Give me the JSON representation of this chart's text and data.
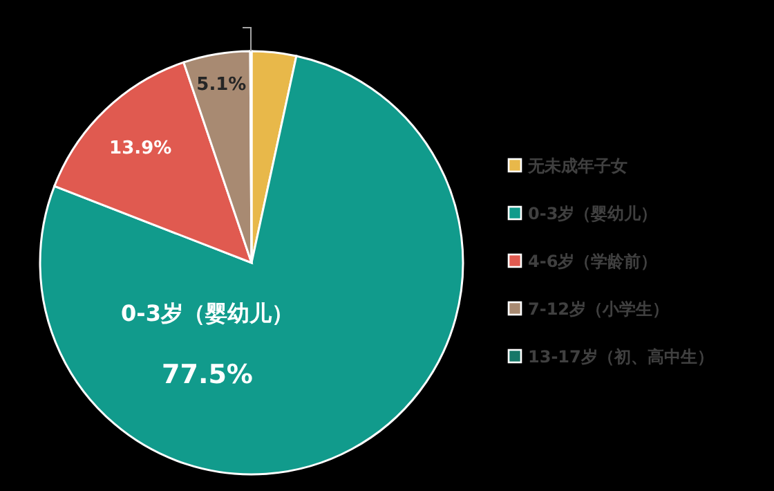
{
  "chart_data": {
    "type": "pie",
    "categories": [
      "无未成年子女",
      "0-3岁（婴幼儿）",
      "4-6岁（学龄前）",
      "7-12岁（小学生）",
      "13-17岁（初、高中生）"
    ],
    "values": [
      3.4,
      77.5,
      13.9,
      5.1,
      0.1
    ],
    "colors": [
      "#e8b84a",
      "#119b8c",
      "#e05a50",
      "#a88a72",
      "#167868"
    ],
    "value_labels": [
      null,
      "77.5%",
      "13.9%",
      "5.1%",
      null
    ],
    "annotations": [
      "0-3岁（婴幼儿）"
    ],
    "legend": "right"
  }
}
